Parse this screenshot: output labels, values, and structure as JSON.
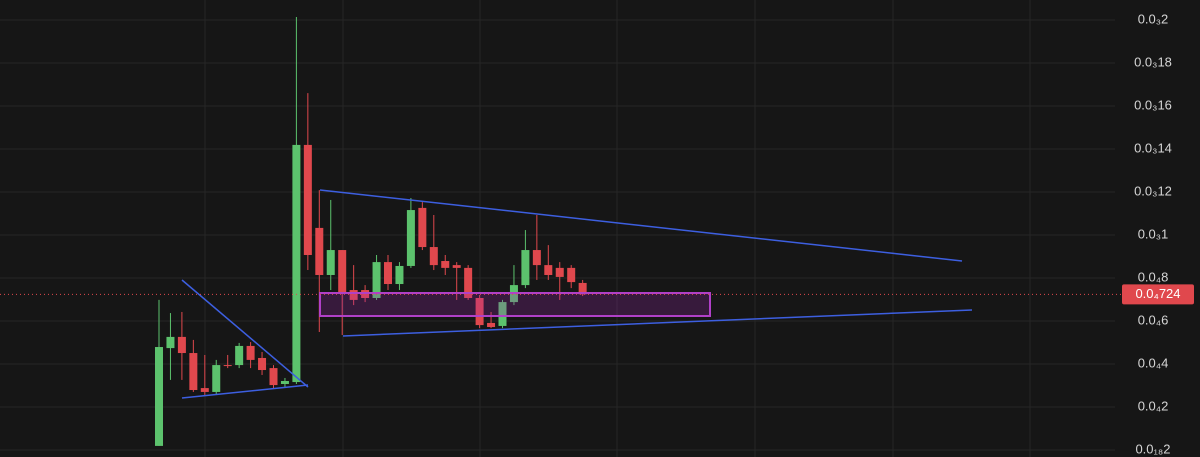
{
  "chart_data": {
    "type": "candlestick",
    "up_color": "#5cc26d",
    "down_color": "#e0484d",
    "open": [
      1.9e-06,
      4.74e-05,
      5.26e-05,
      4.51e-05,
      2.88e-05,
      2.7e-05,
      3.95e-05,
      3.95e-05,
      4.84e-05,
      4.28e-05,
      3.81e-05,
      3.07e-05,
      3.16e-05,
      0.0001419,
      0.0001033,
      8.14e-05,
      9.3e-05,
      7.44e-05,
      7.44e-05,
      7.07e-05,
      8.74e-05,
      7.72e-05,
      8.56e-05,
      0.0001126,
      9.44e-05,
      8.79e-05,
      8.6e-05,
      8.47e-05,
      7.07e-05,
      5.91e-05,
      5.77e-05,
      6.88e-05,
      7.67e-05,
      9.3e-05,
      8.6e-05,
      8.47e-05,
      8.47e-05,
      7.77e-05
    ],
    "high": [
      6.98e-05,
      6.37e-05,
      6.42e-05,
      5.12e-05,
      4.42e-05,
      4.19e-05,
      4.42e-05,
      4.98e-05,
      5.02e-05,
      4.56e-05,
      3.95e-05,
      3.35e-05,
      0.0002014,
      0.000166,
      0.0001209,
      0.0001163,
      9.3e-05,
      8.6e-05,
      7.67e-05,
      9.07e-05,
      9.07e-05,
      8.74e-05,
      0.0001172,
      0.0001153,
      0.0001093,
      9.07e-05,
      8.74e-05,
      8.6e-05,
      7.21e-05,
      6.42e-05,
      6.98e-05,
      8.6e-05,
      0.0001023,
      0.0001093,
      9.53e-05,
      8.74e-05,
      8.6e-05,
      7.91e-05
    ],
    "low": [
      1.9e-06,
      3.26e-05,
      3.26e-05,
      2.7e-05,
      2.56e-05,
      2.56e-05,
      3.81e-05,
      3.81e-05,
      3.81e-05,
      3.49e-05,
      2.88e-05,
      2.93e-05,
      3.07e-05,
      8.37e-05,
      5.49e-05,
      7.44e-05,
      5.35e-05,
      6.74e-05,
      6.88e-05,
      6.98e-05,
      7.44e-05,
      7.44e-05,
      8.47e-05,
      9.3e-05,
      8.37e-05,
      8.14e-05,
      6.98e-05,
      6.98e-05,
      5.67e-05,
      5.67e-05,
      5.67e-05,
      6.74e-05,
      7.53e-05,
      7.91e-05,
      7.91e-05,
      6.98e-05,
      7.53e-05,
      7.16e-05
    ],
    "close": [
      4.79e-05,
      5.26e-05,
      4.51e-05,
      2.79e-05,
      2.7e-05,
      3.95e-05,
      3.91e-05,
      4.84e-05,
      4.19e-05,
      3.72e-05,
      3.02e-05,
      3.21e-05,
      0.0001419,
      9.07e-05,
      8.14e-05,
      9.3e-05,
      7.3e-05,
      6.98e-05,
      7.07e-05,
      8.74e-05,
      7.72e-05,
      8.56e-05,
      0.0001116,
      9.44e-05,
      8.6e-05,
      8.47e-05,
      8.47e-05,
      7.07e-05,
      5.81e-05,
      5.72e-05,
      6.88e-05,
      7.67e-05,
      9.3e-05,
      8.6e-05,
      8.14e-05,
      8.05e-05,
      7.81e-05,
      7.24e-05
    ],
    "ylim": [
      0,
      0.0002
    ],
    "yticks": [
      {
        "value": 0.0002,
        "label": "0.0₃2"
      },
      {
        "value": 0.00018,
        "label": "0.0₃18"
      },
      {
        "value": 0.00016,
        "label": "0.0₃16"
      },
      {
        "value": 0.00014,
        "label": "0.0₃14"
      },
      {
        "value": 0.00012,
        "label": "0.0₃12"
      },
      {
        "value": 0.0001,
        "label": "0.0₃1"
      },
      {
        "value": 8e-05,
        "label": "0.0₄8"
      },
      {
        "value": 6e-05,
        "label": "0.0₄6"
      },
      {
        "value": 4e-05,
        "label": "0.0₄4"
      },
      {
        "value": 2e-05,
        "label": "0.0₄2"
      },
      {
        "value": 2e-19,
        "label": "0.0₁₈2"
      }
    ],
    "grid": true,
    "current_price": {
      "value": 7.24e-05,
      "label": "0.0₄724"
    }
  }
}
